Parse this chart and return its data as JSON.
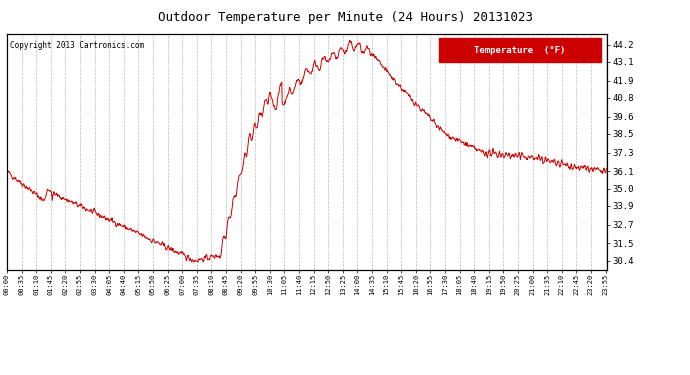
{
  "title": "Outdoor Temperature per Minute (24 Hours) 20131023",
  "copyright_text": "Copyright 2013 Cartronics.com",
  "legend_label": "Temperature  (°F)",
  "line_color": "#cc0000",
  "background_color": "#ffffff",
  "grid_color": "#bbbbbb",
  "yticks": [
    30.4,
    31.5,
    32.7,
    33.9,
    35.0,
    36.1,
    37.3,
    38.5,
    39.6,
    40.8,
    41.9,
    43.1,
    44.2
  ],
  "ylim": [
    29.8,
    44.9
  ],
  "xtick_labels": [
    "00:00",
    "00:35",
    "01:10",
    "01:45",
    "02:20",
    "02:55",
    "03:30",
    "04:05",
    "04:40",
    "05:15",
    "05:50",
    "06:25",
    "07:00",
    "07:35",
    "08:10",
    "08:45",
    "09:20",
    "09:55",
    "10:30",
    "11:05",
    "11:40",
    "12:15",
    "12:50",
    "13:25",
    "14:00",
    "14:35",
    "15:10",
    "15:45",
    "16:20",
    "16:55",
    "17:30",
    "18:05",
    "18:40",
    "19:15",
    "19:50",
    "20:25",
    "21:00",
    "21:35",
    "22:10",
    "22:45",
    "23:20",
    "23:55"
  ],
  "legend_bg": "#cc0000",
  "legend_text_color": "#ffffff"
}
